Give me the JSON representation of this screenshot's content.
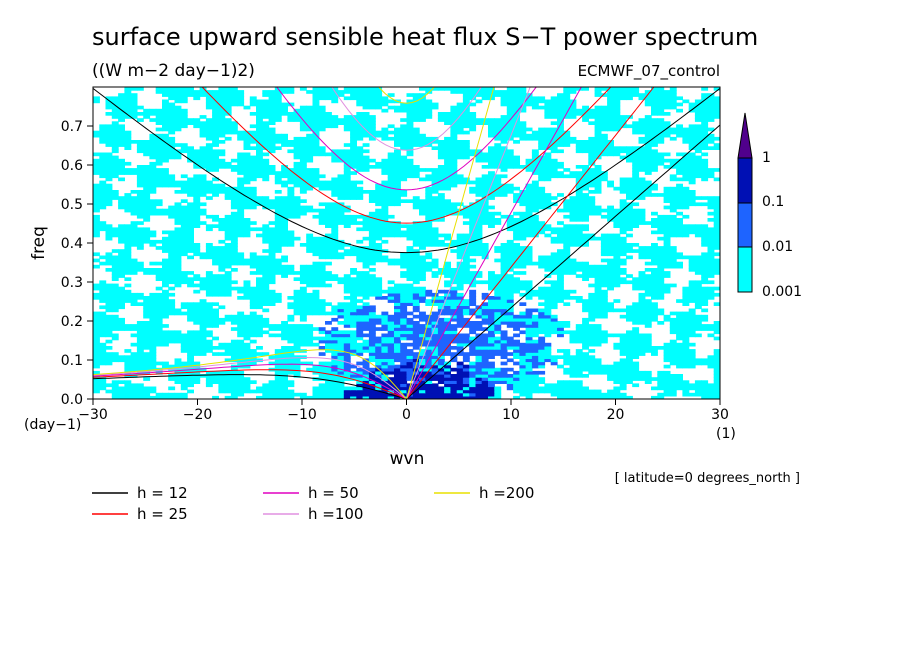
{
  "chart_data": {
    "type": "heatmap",
    "title": "surface upward sensible heat flux S−T power spectrum",
    "subtitle": "((W m−2 day−1)2)",
    "model_label": "ECMWF_07_control",
    "xlabel": "wvn",
    "ylabel": "freq",
    "x_unit": "(1)",
    "y_unit": "(day−1)",
    "footnote": "[ latitude=0 degrees_north ]",
    "xlim": [
      -30,
      30
    ],
    "ylim": [
      0,
      0.8
    ],
    "x_ticks": [
      -30,
      -20,
      -10,
      0,
      10,
      20,
      30
    ],
    "x_tick_labels": [
      "−30",
      "−20",
      "−10",
      "0",
      "10",
      "20",
      "30"
    ],
    "y_ticks": [
      0.0,
      0.1,
      0.2,
      0.3,
      0.4,
      0.5,
      0.6,
      0.7
    ],
    "y_tick_labels": [
      "0.0",
      "0.1",
      "0.2",
      "0.3",
      "0.4",
      "0.5",
      "0.6",
      "0.7"
    ],
    "colorbar": {
      "levels": [
        0.001,
        0.01,
        0.1,
        1
      ],
      "level_labels": [
        "0.001",
        "0.01",
        "0.1",
        "1"
      ],
      "colors": [
        "#00ffff",
        "#1e64ff",
        "#0010b4",
        "#50008c"
      ]
    },
    "field_regions": [
      {
        "level": 0.001,
        "desc": "patchy cyan background",
        "x": [
          -30,
          30
        ],
        "y": [
          0,
          0.8
        ]
      },
      {
        "level": 0.01,
        "x_center": 3,
        "y_center": 0.14,
        "x_halfwidth": 12,
        "y_halfwidth": 0.14
      },
      {
        "level": 0.1,
        "x_center": 1.5,
        "y_center": 0.03,
        "x_halfwidth": 6,
        "y_halfwidth": 0.07
      }
    ],
    "dispersion_curves": {
      "equivalent_depths": [
        12,
        25,
        50,
        100,
        200
      ],
      "legend_labels": [
        "h = 12",
        "h = 25",
        "h = 50",
        "h =100",
        "h =200"
      ],
      "colors": [
        "#000000",
        "#ff0000",
        "#e000c0",
        "#e090e0",
        "#e8e000"
      ]
    },
    "legend_position": "bottom-left"
  }
}
